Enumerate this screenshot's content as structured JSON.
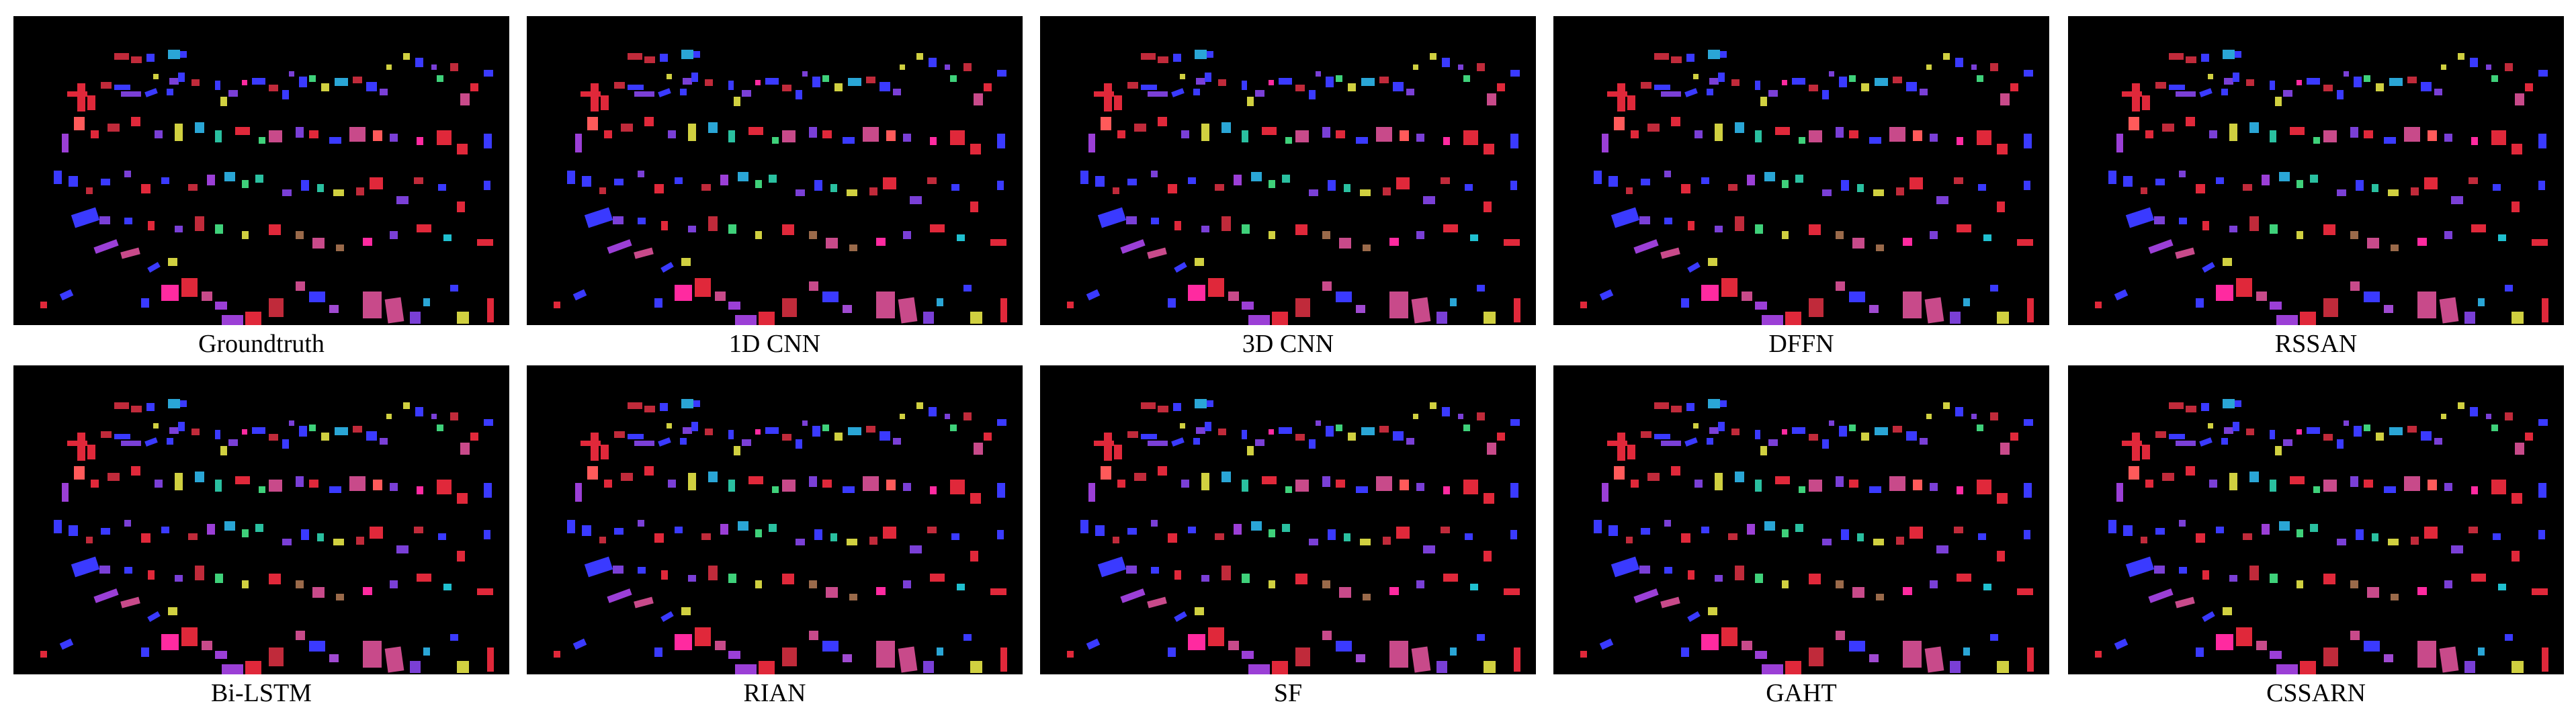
{
  "figure": {
    "panels": [
      {
        "caption": "Groundtruth"
      },
      {
        "caption": "1D CNN"
      },
      {
        "caption": "3D CNN"
      },
      {
        "caption": "DFFN"
      },
      {
        "caption": "RSSAN"
      },
      {
        "caption": "Bi-LSTM"
      },
      {
        "caption": "RIAN"
      },
      {
        "caption": "SF"
      },
      {
        "caption": "GAHT"
      },
      {
        "caption": "CSSARN"
      }
    ]
  },
  "palette": {
    "background": "#000000",
    "classes": [
      "#e0283a",
      "#c02a3a",
      "#3a3aff",
      "#7a3fd6",
      "#3fd17a",
      "#d0d040",
      "#2aa6d6",
      "#ff2aa0",
      "#9b3fd6",
      "#c84a8a",
      "#2ac0a0",
      "#ff5a5a",
      "#9a6a4a",
      "#a04ad0",
      "#20c0d0"
    ]
  }
}
